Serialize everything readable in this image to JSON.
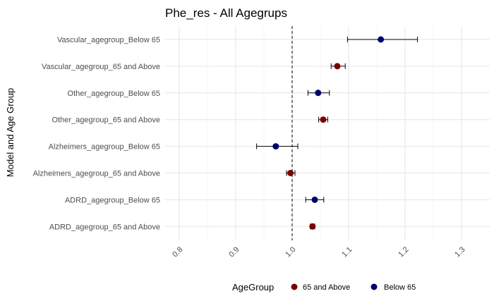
{
  "chart_data": {
    "type": "scatter",
    "title": "Phe_res - All Agegrups",
    "xlabel": "",
    "ylabel": "Model and Age Group",
    "xlim": [
      0.75,
      1.35
    ],
    "x_ticks": [
      0.8,
      0.9,
      1.0,
      1.1,
      1.2,
      1.3
    ],
    "x_tick_labels": [
      "0.8",
      "0.9",
      "1.0",
      "1.1",
      "1.2",
      "1.3"
    ],
    "reference_line": 1.0,
    "grid": true,
    "legend": {
      "title": "AgeGroup",
      "placement": "bottom",
      "entries": [
        {
          "label": "65 and Above",
          "color": "#7a0000"
        },
        {
          "label": "Below 65",
          "color": "#00006e"
        }
      ]
    },
    "categories": [
      "Vascular_agegroup_Below 65",
      "Vascular_agegroup_65 and Above",
      "Other_agegroup_Below 65",
      "Other_agegroup_65 and Above",
      "Alzheimers_agegroup_Below 65",
      "Alzheimers_agegroup_65 and Above",
      "ADRD_agegroup_Below 65",
      "ADRD_agegroup_65 and Above"
    ],
    "points": [
      {
        "category": "Vascular_agegroup_Below 65",
        "group": "Below 65",
        "estimate": 1.157,
        "lower": 1.098,
        "upper": 1.222
      },
      {
        "category": "Vascular_agegroup_65 and Above",
        "group": "65 and Above",
        "estimate": 1.08,
        "lower": 1.069,
        "upper": 1.094
      },
      {
        "category": "Other_agegroup_Below 65",
        "group": "Below 65",
        "estimate": 1.046,
        "lower": 1.028,
        "upper": 1.066
      },
      {
        "category": "Other_agegroup_65 and Above",
        "group": "65 and Above",
        "estimate": 1.055,
        "lower": 1.047,
        "upper": 1.063
      },
      {
        "category": "Alzheimers_agegroup_Below 65",
        "group": "Below 65",
        "estimate": 0.971,
        "lower": 0.937,
        "upper": 1.01
      },
      {
        "category": "Alzheimers_agegroup_65 and Above",
        "group": "65 and Above",
        "estimate": 0.997,
        "lower": 0.99,
        "upper": 1.005
      },
      {
        "category": "ADRD_agegroup_Below 65",
        "group": "Below 65",
        "estimate": 1.04,
        "lower": 1.024,
        "upper": 1.056
      },
      {
        "category": "ADRD_agegroup_65 and Above",
        "group": "65 and Above",
        "estimate": 1.036,
        "lower": 1.032,
        "upper": 1.04
      }
    ]
  }
}
